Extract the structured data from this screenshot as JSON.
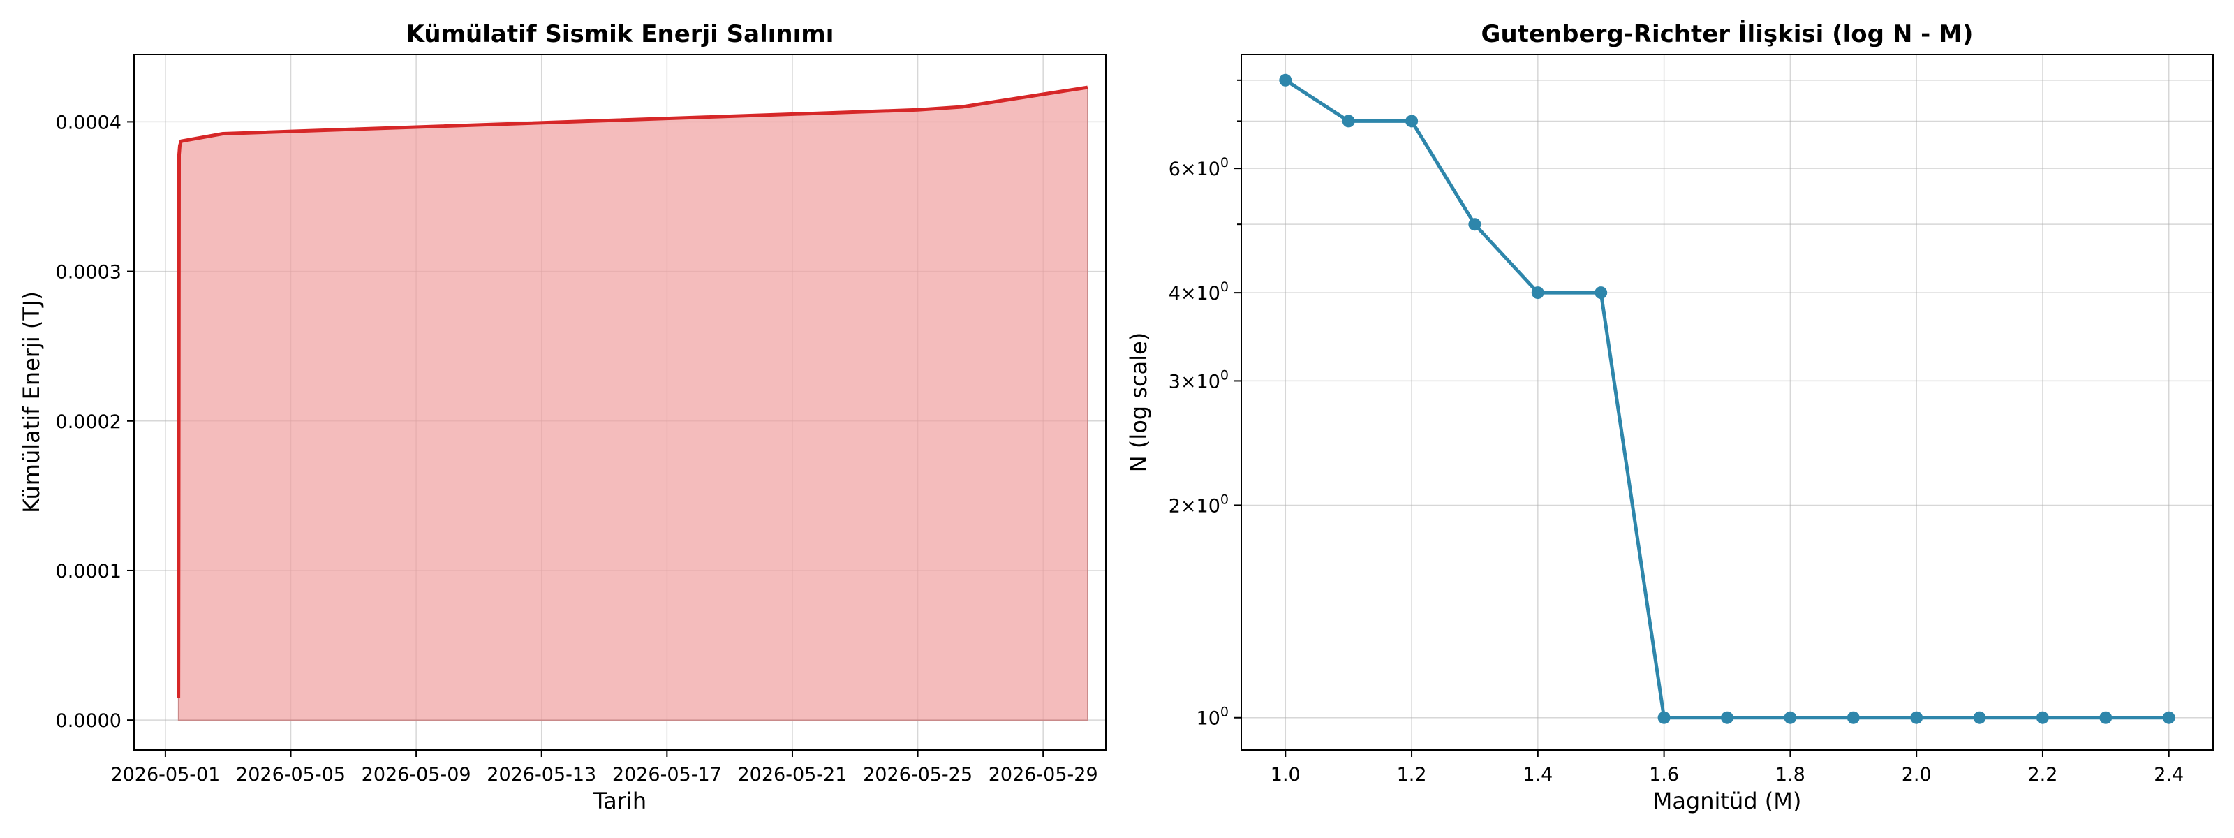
{
  "chart_data": [
    {
      "type": "area",
      "title": "Kümülatif Sismik Enerji Salınımı",
      "xlabel": "Tarih",
      "ylabel": "Kümülatif Enerji (TJ)",
      "x_ticks": [
        "2026-05-01",
        "2026-05-05",
        "2026-05-09",
        "2026-05-13",
        "2026-05-17",
        "2026-05-21",
        "2026-05-25",
        "2026-05-29"
      ],
      "y_ticks": [
        "0.0000",
        "0.0001",
        "0.0002",
        "0.0003",
        "0.0004"
      ],
      "xlim": [
        "2026-04-30",
        "2026-05-31"
      ],
      "ylim": [
        -2e-05,
        0.000445
      ],
      "grid": true,
      "line_color": "#d62728",
      "fill_color": "#f0a0a0",
      "x": [
        "2026-05-01T10:00",
        "2026-05-01T10:30",
        "2026-05-01T11:00",
        "2026-05-01T12:00",
        "2026-05-02T20:00",
        "2026-05-25T00:00",
        "2026-05-26T10:00",
        "2026-05-30T10:00"
      ],
      "values": [
        1.5e-05,
        0.000378,
        0.000384,
        0.000387,
        0.000392,
        0.000408,
        0.00041,
        0.000423
      ]
    },
    {
      "type": "line",
      "title": "Gutenberg-Richter İlişkisi (log N - M)",
      "xlabel": "Magnitüd (M)",
      "ylabel": "N (log scale)",
      "y_scale": "log",
      "x_ticks": [
        "1.0",
        "1.2",
        "1.4",
        "1.6",
        "1.8",
        "2.0",
        "2.2",
        "2.4"
      ],
      "y_ticks": [
        {
          "value": 1,
          "label": "10^0"
        },
        {
          "value": 2,
          "label": "2×10^0"
        },
        {
          "value": 3,
          "label": "3×10^0"
        },
        {
          "value": 4,
          "label": "4×10^0"
        },
        {
          "value": 6,
          "label": "6×10^0"
        }
      ],
      "xlim": [
        0.93,
        2.47
      ],
      "ylim": [
        0.9,
        8.7
      ],
      "grid": true,
      "line_color": "#2e86ab",
      "x": [
        1.0,
        1.1,
        1.2,
        1.3,
        1.4,
        1.5,
        1.6,
        1.7,
        1.8,
        1.9,
        2.0,
        2.1,
        2.2,
        2.3,
        2.4
      ],
      "values": [
        8,
        7,
        7,
        5,
        4,
        4,
        1,
        1,
        1,
        1,
        1,
        1,
        1,
        1,
        1
      ]
    }
  ]
}
